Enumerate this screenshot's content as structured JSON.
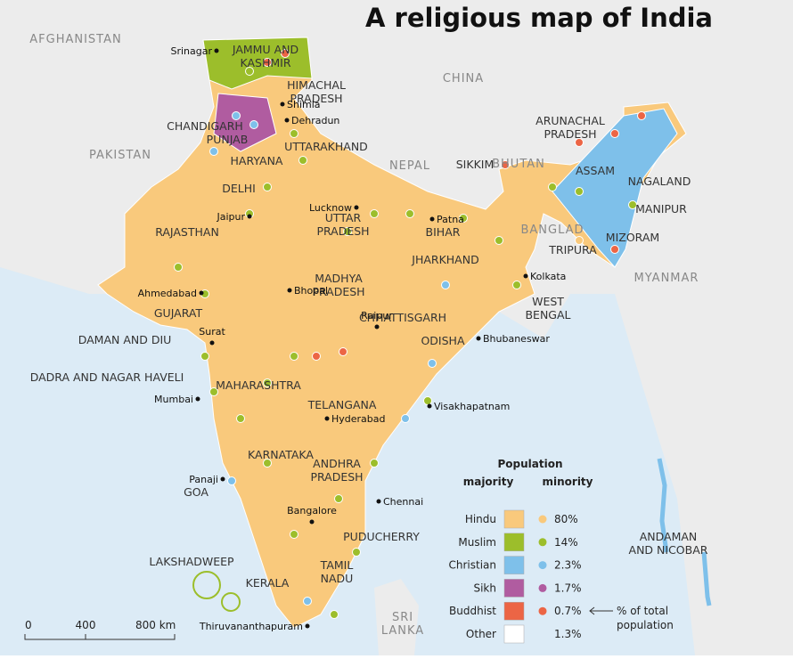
{
  "title": "A religious map of India",
  "countries": [
    "AFGHANISTAN",
    "CHINA",
    "PAKISTAN",
    "NEPAL",
    "BHUTAN",
    "BANGLAD",
    "MYANMAR",
    [
      "SRI",
      "LANKA"
    ]
  ],
  "states": [
    [
      "JAMMU AND",
      "KASHMIR"
    ],
    [
      "HIMACHAL",
      "PRADESH"
    ],
    "CHANDIGARH",
    "PUNJAB",
    "UTTARAKHAND",
    "HARYANA",
    "DELHI",
    "RAJASTHAN",
    [
      "UTTAR",
      "PRADESH"
    ],
    "BIHAR",
    "SIKKIM",
    "ASSAM",
    [
      "ARUNACHAL",
      "PRADESH"
    ],
    "NAGALAND",
    "MANIPUR",
    "MIZORAM",
    "TRIPURA",
    "JHARKHAND",
    [
      "WEST",
      "BENGAL"
    ],
    [
      "MADHYA",
      "PRADESH"
    ],
    "GUJARAT",
    "CHHATTISGARH",
    "ODISHA",
    "DAMAN AND DIU",
    "DADRA AND NAGAR HAVELI",
    "MAHARASHTRA",
    "TELANGANA",
    "KARNATAKA",
    [
      "ANDHRA",
      "PRADESH"
    ],
    "GOA",
    "PUDUCHERRY",
    [
      "TAMIL",
      "NADU"
    ],
    "KERALA",
    "LAKSHADWEEP",
    [
      "ANDAMAN",
      "AND NICOBAR"
    ]
  ],
  "cities": [
    "Srinagar",
    "Shimla",
    "Dehradun",
    "Lucknow",
    "Patna",
    "Jaipur",
    "Kolkata",
    "Ahmedabad",
    "Bhopal",
    "Raipur",
    "Bhubaneswar",
    "Surat",
    "Mumbai",
    "Hyderabad",
    "Visakhapatnam",
    "Panaji",
    "Bangalore",
    "Chennai",
    "Thiruvananthapuram"
  ],
  "legend": {
    "heading": "Population",
    "majority": "majority",
    "minority": "minority",
    "rows": [
      {
        "religion": "Hindu",
        "share": "80%",
        "color": "#f9c97c"
      },
      {
        "religion": "Muslim",
        "share": "14%",
        "color": "#9cbe2b"
      },
      {
        "religion": "Christian",
        "share": "2.3%",
        "color": "#7ec0ea"
      },
      {
        "religion": "Sikh",
        "share": "1.7%",
        "color": "#b05ca0"
      },
      {
        "religion": "Buddhist",
        "share": "0.7%",
        "color": "#ec6545"
      },
      {
        "religion": "Other",
        "share": "1.3%",
        "color": "#ffffff"
      }
    ],
    "note": [
      "% of total",
      "population"
    ]
  },
  "scale": [
    "0",
    "400",
    "800 km"
  ]
}
